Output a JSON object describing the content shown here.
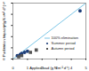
{
  "chart_data": {
    "type": "scatter",
    "x_label": "Applied load (g N m⁻² d⁻¹)",
    "y_label": "Purification capacity (g N m⁻² d⁻¹)",
    "xlim": [
      0,
      5
    ],
    "ylim": [
      0,
      5
    ],
    "xticks": [
      0,
      1,
      2,
      3,
      4,
      5
    ],
    "yticks": [
      0,
      1,
      2,
      3,
      4,
      5
    ],
    "legend": "right",
    "series": [
      {
        "name": "100% elimination",
        "type": "line",
        "color": "#5bb8e0",
        "line_style": "solid",
        "x": [
          0,
          5
        ],
        "values": [
          0,
          5
        ]
      },
      {
        "name": "Summer period",
        "type": "scatter",
        "color": "#1f3f7a",
        "marker": "circle",
        "x": [
          0.3,
          0.5,
          0.6,
          0.8,
          1.0,
          4.6
        ],
        "values": [
          0.3,
          0.4,
          0.5,
          0.6,
          0.7,
          4.3
        ]
      },
      {
        "name": "Autumn period",
        "type": "scatter",
        "color": "#555555",
        "marker": "square",
        "x": [
          0.4,
          0.6,
          1.2,
          1.6
        ],
        "values": [
          0.2,
          0.3,
          0.6,
          0.8
        ]
      }
    ]
  }
}
